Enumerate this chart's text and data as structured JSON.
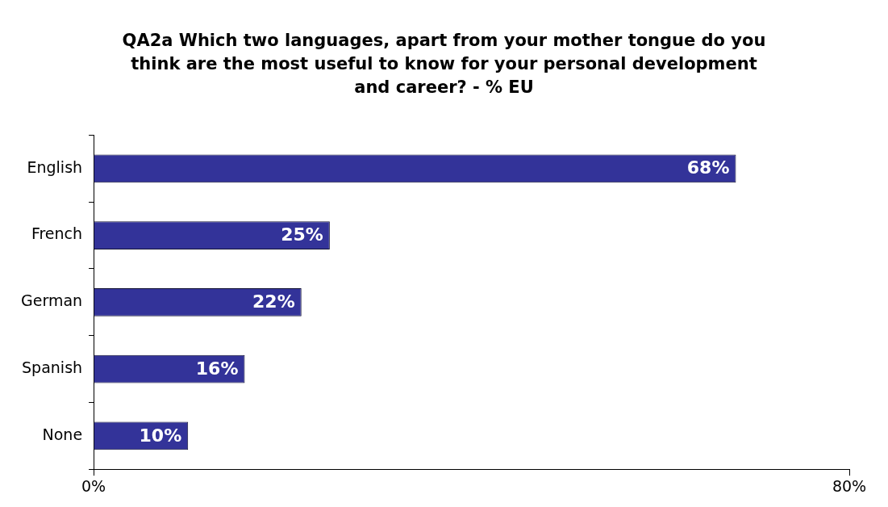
{
  "chart_data": {
    "type": "bar",
    "orientation": "horizontal",
    "title": "QA2a Which two languages, apart from your mother tongue do you think are the most useful to know for your personal development and career? - % EU",
    "categories": [
      "English",
      "French",
      "German",
      "Spanish",
      "None"
    ],
    "values": [
      68,
      25,
      22,
      16,
      10
    ],
    "value_labels": [
      "68%",
      "25%",
      "22%",
      "16%",
      "10%"
    ],
    "color": "#333399",
    "xlim": [
      0,
      80
    ],
    "xticks": [
      {
        "value": 0,
        "label": "0%"
      },
      {
        "value": 80,
        "label": "80%"
      }
    ],
    "grid": false,
    "legend": false
  }
}
